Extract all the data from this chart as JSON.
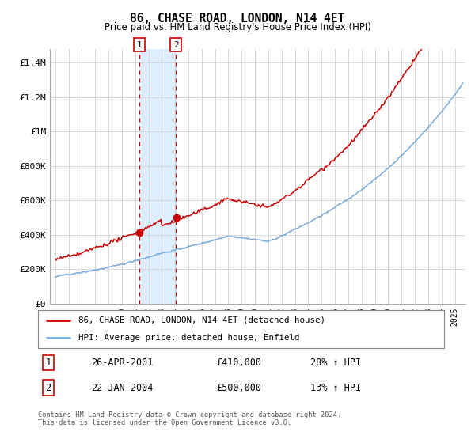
{
  "title": "86, CHASE ROAD, LONDON, N14 4ET",
  "subtitle": "Price paid vs. HM Land Registry's House Price Index (HPI)",
  "ylabel_ticks": [
    "£0",
    "£200K",
    "£400K",
    "£600K",
    "£800K",
    "£1M",
    "£1.2M",
    "£1.4M"
  ],
  "ytick_values": [
    0,
    200000,
    400000,
    600000,
    800000,
    1000000,
    1200000,
    1400000
  ],
  "ylim": [
    0,
    1480000
  ],
  "x_start_year": 1995,
  "x_end_year": 2025,
  "sale1": {
    "date_num": 2001.32,
    "price": 410000,
    "label": "1",
    "date_str": "26-APR-2001",
    "hpi_pct": "28% ↑ HPI"
  },
  "sale2": {
    "date_num": 2004.06,
    "price": 500000,
    "label": "2",
    "date_str": "22-JAN-2004",
    "hpi_pct": "13% ↑ HPI"
  },
  "red_line_color": "#cc0000",
  "blue_line_color": "#77aadd",
  "shade_color": "#ddeeff",
  "dot_color": "#cc0000",
  "grid_color": "#cccccc",
  "bg_color": "#ffffff",
  "legend_label_red": "86, CHASE ROAD, LONDON, N14 4ET (detached house)",
  "legend_label_blue": "HPI: Average price, detached house, Enfield",
  "footnote": "Contains HM Land Registry data © Crown copyright and database right 2024.\nThis data is licensed under the Open Government Licence v3.0.",
  "table_rows": [
    {
      "num": "1",
      "date": "26-APR-2001",
      "price": "£410,000",
      "hpi": "28% ↑ HPI"
    },
    {
      "num": "2",
      "date": "22-JAN-2004",
      "price": "£500,000",
      "hpi": "13% ↑ HPI"
    }
  ]
}
